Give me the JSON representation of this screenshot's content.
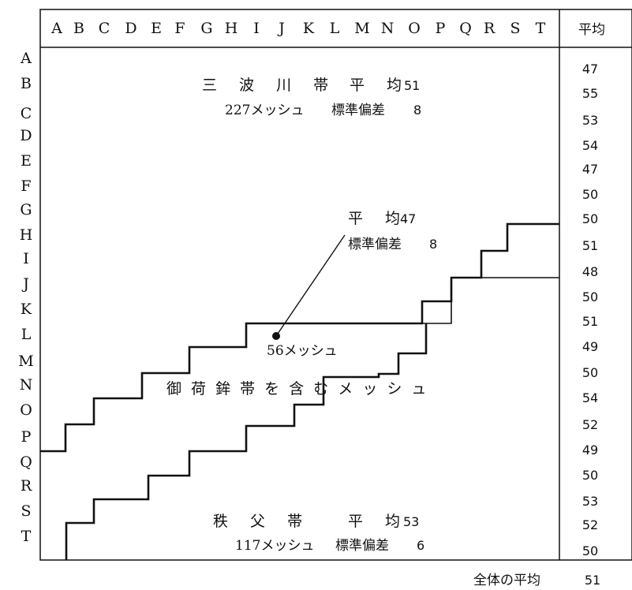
{
  "column_labels": [
    "A",
    "B",
    "C",
    "D",
    "E",
    "F",
    "G",
    "H",
    "I",
    "J",
    "K",
    "L",
    "M",
    "N",
    "O",
    "P",
    "Q",
    "R",
    "S",
    "T"
  ],
  "row_labels": [
    "A",
    "B",
    "C",
    "D",
    "E",
    "F",
    "G",
    "H",
    "I",
    "J",
    "K",
    "L",
    "M",
    "N",
    "O",
    "P",
    "Q",
    "R",
    "S",
    "T"
  ],
  "average_column": {
    "header": "平均",
    "values": [
      "47",
      "55",
      "53",
      "54",
      "47",
      "50",
      "50",
      "51",
      "48",
      "50",
      "51",
      "49",
      "50",
      "54",
      "52",
      "49",
      "50",
      "53",
      "52",
      "50"
    ]
  },
  "zones": {
    "sanbagawa": {
      "title": "三 波 川 帯",
      "avg_label": "平 均",
      "avg_value": "51",
      "mesh": "227メッシュ",
      "sd_label": "標準偏差",
      "sd_value": "8"
    },
    "mikabu": {
      "avg_label": "平 均",
      "avg_value": "47",
      "sd_label": "標準偏差",
      "sd_value": "8",
      "mesh": "56メッシュ",
      "title": "御 荷 鉾 帯 を 含 む メ ッ シ ュ"
    },
    "chichibu": {
      "title": "秩 父 帯",
      "avg_label": "平 均",
      "avg_value": "53",
      "mesh": "117メッシュ",
      "sd_label": "標準偏差",
      "sd_value": "6"
    }
  },
  "overall": {
    "label": "全体の平均",
    "value": "51"
  }
}
